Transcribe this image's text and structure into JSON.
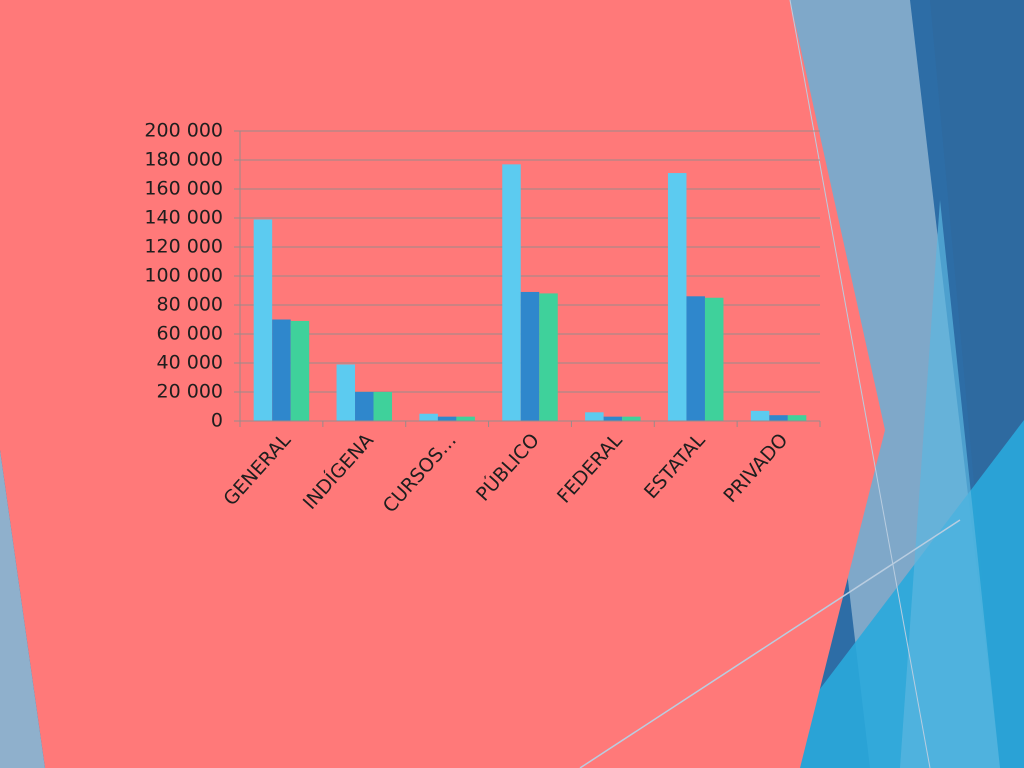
{
  "chart_data": {
    "type": "bar",
    "categories": [
      "GENERAL",
      "INDÍGENA",
      "CURSOS…",
      "PÚBLICO",
      "FEDERAL",
      "ESTATAL",
      "PRIVADO"
    ],
    "series": [
      {
        "color": "#5ccbf0",
        "values": [
          139000,
          39000,
          5000,
          177000,
          6000,
          171000,
          7000
        ]
      },
      {
        "color": "#2f87cc",
        "values": [
          70000,
          20000,
          3000,
          89000,
          3000,
          86000,
          4000
        ]
      },
      {
        "color": "#3fd19b",
        "values": [
          69000,
          20000,
          3000,
          88000,
          3000,
          85000,
          4000
        ]
      }
    ],
    "ylim": [
      0,
      200000
    ],
    "yticks": [
      0,
      {
        "value": 20000,
        "label": "20 000"
      },
      {
        "value": 40000,
        "label": "40 000"
      },
      {
        "value": 60000,
        "label": "60 000"
      },
      {
        "value": 80000,
        "label": "80 000"
      },
      {
        "value": 100000,
        "label": "100 000"
      },
      {
        "value": 120000,
        "label": "120 000"
      },
      {
        "value": 140000,
        "label": "140 000"
      },
      {
        "value": 160000,
        "label": "160 000"
      },
      {
        "value": 180000,
        "label": "180 000"
      },
      {
        "value": 200000,
        "label": "200 000"
      }
    ],
    "grid": true
  }
}
